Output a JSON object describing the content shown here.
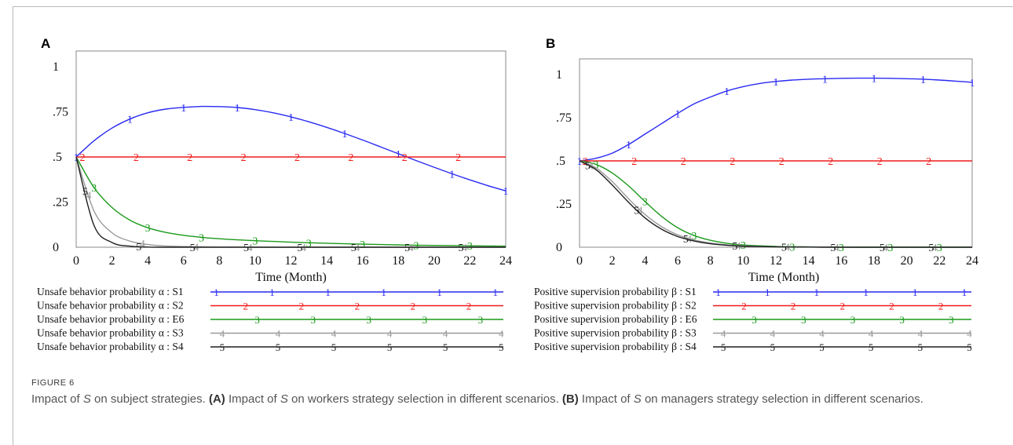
{
  "figure": {
    "label": "FIGURE 6",
    "caption": {
      "title": "Impact of S on subject strategies.",
      "part_a_tag": "(A)",
      "part_a": "Impact of S on workers strategy selection in different scenarios.",
      "part_b_tag": "(B)",
      "part_b": "Impact of S on managers strategy selection in different scenarios."
    }
  },
  "colors": {
    "1": "#2a2af2",
    "2": "#f01a1a",
    "3": "#1a9a1a",
    "4": "#9a9a9a",
    "5": "#1e1e1e"
  },
  "chart_data": [
    {
      "panel": "A",
      "type": "line",
      "xlabel": "Time (Month)",
      "ylabel": "",
      "xlim": [
        0,
        24
      ],
      "ylim": [
        0,
        1
      ],
      "x_ticks": [
        0,
        2,
        4,
        6,
        8,
        10,
        12,
        14,
        16,
        18,
        20,
        22,
        24
      ],
      "y_ticks": [
        {
          "value": 1,
          "label": "1"
        },
        {
          "value": 0.75,
          "label": ".75"
        },
        {
          "value": 0.5,
          "label": ".5"
        },
        {
          "value": 0.25,
          "label": ".25"
        },
        {
          "value": 0,
          "label": "0"
        }
      ],
      "x": [
        0,
        1,
        2,
        3,
        4,
        5,
        6,
        7,
        8,
        9,
        10,
        11,
        12,
        13,
        14,
        15,
        16,
        17,
        18,
        19,
        20,
        21,
        22,
        23,
        24
      ],
      "series": [
        {
          "marker": "1",
          "name": "Unsafe behavior probability α : S1",
          "values": [
            0.5,
            0.59,
            0.66,
            0.71,
            0.745,
            0.765,
            0.775,
            0.78,
            0.779,
            0.774,
            0.762,
            0.745,
            0.722,
            0.695,
            0.664,
            0.63,
            0.594,
            0.556,
            0.518,
            0.48,
            0.443,
            0.407,
            0.373,
            0.341,
            0.312
          ]
        },
        {
          "marker": "2",
          "name": "Unsafe behavior probability α : S2",
          "values": [
            0.5,
            0.5,
            0.5,
            0.5,
            0.5,
            0.5,
            0.5,
            0.5,
            0.5,
            0.5,
            0.5,
            0.5,
            0.5,
            0.5,
            0.5,
            0.5,
            0.5,
            0.5,
            0.5,
            0.5,
            0.5,
            0.5,
            0.5,
            0.5,
            0.5
          ]
        },
        {
          "marker": "3",
          "name": "Unsafe behavior probability α : E6",
          "values": [
            0.5,
            0.33,
            0.22,
            0.15,
            0.108,
            0.082,
            0.066,
            0.055,
            0.047,
            0.041,
            0.036,
            0.032,
            0.028,
            0.025,
            0.022,
            0.019,
            0.017,
            0.015,
            0.013,
            0.011,
            0.01,
            0.009,
            0.008,
            0.007,
            0.006
          ]
        },
        {
          "marker": "4",
          "name": "Unsafe behavior probability α : S3",
          "values": [
            0.5,
            0.2,
            0.08,
            0.034,
            0.015,
            0.007,
            0.004,
            0.002,
            0.001,
            0.001,
            0.0,
            0.0,
            0.0,
            0.0,
            0.0,
            0.0,
            0.0,
            0.0,
            0.0,
            0.0,
            0.0,
            0.0,
            0.0,
            0.0,
            0.0
          ]
        },
        {
          "marker": "5",
          "name": "Unsafe behavior probability α : S4",
          "values": [
            0.5,
            0.12,
            0.026,
            0.006,
            0.001,
            0.0,
            0.0,
            0.0,
            0.0,
            0.0,
            0.0,
            0.0,
            0.0,
            0.0,
            0.0,
            0.0,
            0.0,
            0.0,
            0.0,
            0.0,
            0.0,
            0.0,
            0.0,
            0.0,
            0.0
          ]
        }
      ]
    },
    {
      "panel": "B",
      "type": "line",
      "xlabel": "Time (Month)",
      "ylabel": "",
      "xlim": [
        0,
        24
      ],
      "ylim": [
        0,
        1
      ],
      "x_ticks": [
        0,
        2,
        4,
        6,
        8,
        10,
        12,
        14,
        16,
        18,
        20,
        22,
        24
      ],
      "y_ticks": [
        {
          "value": 1,
          "label": "1"
        },
        {
          "value": 0.75,
          "label": ".75"
        },
        {
          "value": 0.5,
          "label": ".5"
        },
        {
          "value": 0.25,
          "label": ".25"
        },
        {
          "value": 0,
          "label": "0"
        }
      ],
      "x": [
        0,
        1,
        2,
        3,
        4,
        5,
        6,
        7,
        8,
        9,
        10,
        11,
        12,
        13,
        14,
        15,
        16,
        17,
        18,
        19,
        20,
        21,
        22,
        23,
        24
      ],
      "series": [
        {
          "marker": "1",
          "name": "Positive supervision probability β : S1",
          "values": [
            0.5,
            0.515,
            0.545,
            0.595,
            0.655,
            0.715,
            0.775,
            0.83,
            0.87,
            0.905,
            0.93,
            0.948,
            0.96,
            0.968,
            0.973,
            0.976,
            0.978,
            0.979,
            0.979,
            0.978,
            0.976,
            0.973,
            0.968,
            0.962,
            0.955
          ]
        },
        {
          "marker": "2",
          "name": "Positive supervision probability β : S2",
          "values": [
            0.5,
            0.5,
            0.5,
            0.5,
            0.5,
            0.5,
            0.5,
            0.5,
            0.5,
            0.5,
            0.5,
            0.5,
            0.5,
            0.5,
            0.5,
            0.5,
            0.5,
            0.5,
            0.5,
            0.5,
            0.5,
            0.5,
            0.5,
            0.5,
            0.5
          ]
        },
        {
          "marker": "3",
          "name": "Positive supervision probability β : E6",
          "values": [
            0.5,
            0.48,
            0.43,
            0.355,
            0.265,
            0.18,
            0.113,
            0.068,
            0.04,
            0.023,
            0.013,
            0.008,
            0.005,
            0.003,
            0.002,
            0.001,
            0.001,
            0.0,
            0.0,
            0.0,
            0.0,
            0.0,
            0.0,
            0.0,
            0.0
          ]
        },
        {
          "marker": "4",
          "name": "Positive supervision probability β : S3",
          "values": [
            0.5,
            0.46,
            0.38,
            0.28,
            0.19,
            0.12,
            0.072,
            0.042,
            0.024,
            0.014,
            0.008,
            0.005,
            0.003,
            0.002,
            0.001,
            0.001,
            0.0,
            0.0,
            0.0,
            0.0,
            0.0,
            0.0,
            0.0,
            0.0,
            0.0
          ]
        },
        {
          "marker": "5",
          "name": "Positive supervision probability β : S4",
          "values": [
            0.5,
            0.45,
            0.36,
            0.26,
            0.17,
            0.105,
            0.062,
            0.036,
            0.02,
            0.011,
            0.006,
            0.004,
            0.002,
            0.001,
            0.001,
            0.0,
            0.0,
            0.0,
            0.0,
            0.0,
            0.0,
            0.0,
            0.0,
            0.0,
            0.0
          ]
        }
      ]
    }
  ]
}
